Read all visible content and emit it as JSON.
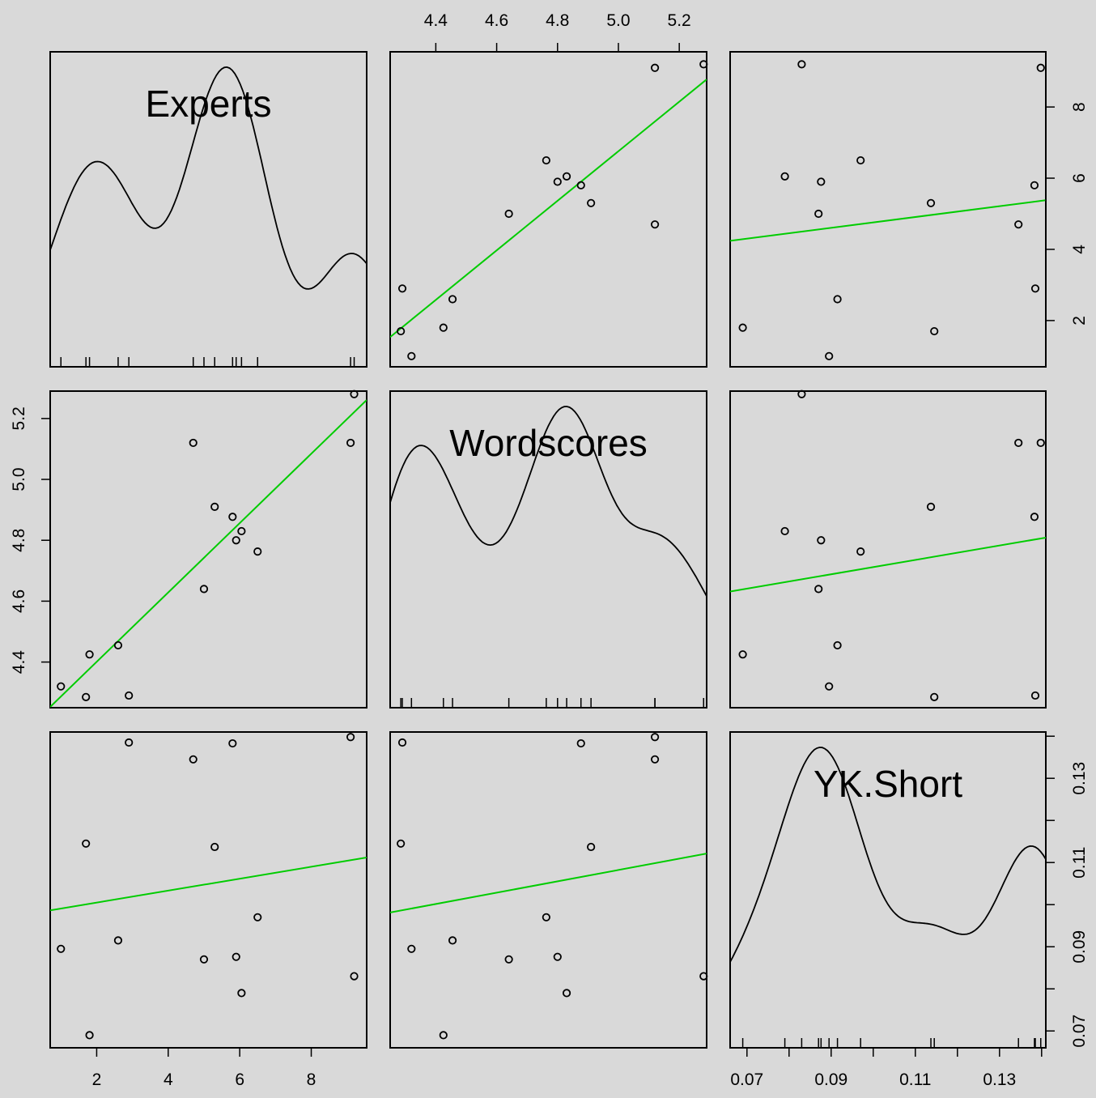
{
  "chart_data": {
    "type": "scatter",
    "layout": "scatterplot-matrix",
    "variables": [
      "Experts",
      "Wordscores",
      "YK.Short"
    ],
    "diagonal_labels": [
      "Experts",
      "Wordscores",
      "YK.Short"
    ],
    "fit_color": "#00cc00",
    "point_color": "#000000",
    "axes": {
      "Experts": {
        "range": [
          0.7,
          9.55
        ],
        "ticks": [
          2,
          4,
          6,
          8
        ]
      },
      "Wordscores": {
        "range": [
          4.25,
          5.29
        ],
        "ticks": [
          4.4,
          4.6,
          4.8,
          5.0,
          5.2
        ]
      },
      "YK.Short": {
        "range": [
          0.066,
          0.141
        ],
        "ticks": [
          0.07,
          0.09,
          0.11,
          0.13
        ],
        "minor_ticks": [
          0.08,
          0.1,
          0.12,
          0.14
        ]
      }
    },
    "tick_labels": {
      "Experts": [
        "2",
        "4",
        "6",
        "8"
      ],
      "Wordscores": [
        "4.4",
        "4.6",
        "4.8",
        "5.0",
        "5.2"
      ],
      "YK.Short": [
        "0.07",
        "0.09",
        "0.11",
        "0.13"
      ]
    },
    "observations": [
      {
        "Experts": 1.0,
        "Wordscores": 4.32,
        "YK.Short": 0.0895
      },
      {
        "Experts": 1.7,
        "Wordscores": 4.285,
        "YK.Short": 0.1145
      },
      {
        "Experts": 1.8,
        "Wordscores": 4.425,
        "YK.Short": 0.069
      },
      {
        "Experts": 2.6,
        "Wordscores": 4.455,
        "YK.Short": 0.0915
      },
      {
        "Experts": 2.9,
        "Wordscores": 4.29,
        "YK.Short": 0.1385
      },
      {
        "Experts": 4.7,
        "Wordscores": 5.12,
        "YK.Short": 0.1345
      },
      {
        "Experts": 5.0,
        "Wordscores": 4.64,
        "YK.Short": 0.087
      },
      {
        "Experts": 5.3,
        "Wordscores": 4.91,
        "YK.Short": 0.1137
      },
      {
        "Experts": 5.8,
        "Wordscores": 4.877,
        "YK.Short": 0.1383
      },
      {
        "Experts": 5.9,
        "Wordscores": 4.8,
        "YK.Short": 0.0876
      },
      {
        "Experts": 6.05,
        "Wordscores": 4.83,
        "YK.Short": 0.079
      },
      {
        "Experts": 6.5,
        "Wordscores": 4.763,
        "YK.Short": 0.097
      },
      {
        "Experts": 9.1,
        "Wordscores": 5.12,
        "YK.Short": 0.1398
      },
      {
        "Experts": 9.2,
        "Wordscores": 5.28,
        "YK.Short": 0.083
      }
    ]
  }
}
